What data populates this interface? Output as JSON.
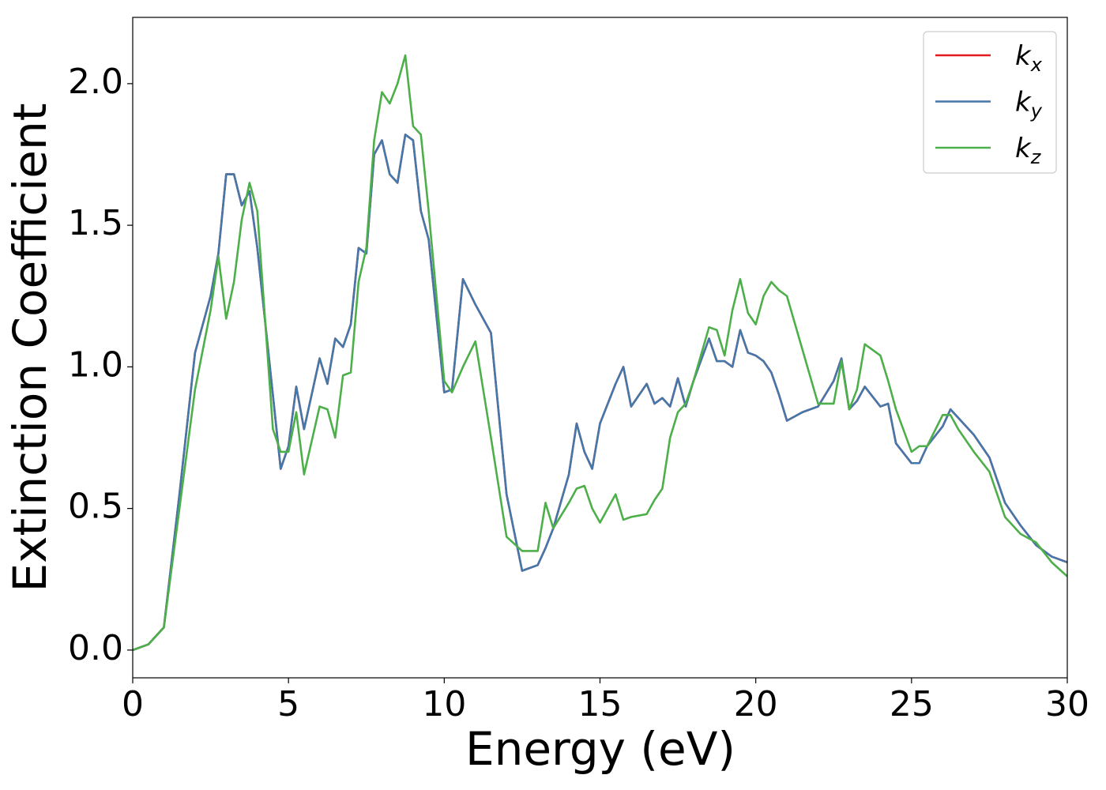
{
  "chart_data": {
    "type": "line",
    "xlabel": "Energy (eV)",
    "ylabel": "Extinction Coefficient",
    "x": [
      0,
      0.5,
      1,
      1.5,
      2,
      2.5,
      2.75,
      3,
      3.25,
      3.5,
      3.75,
      4,
      4.5,
      4.75,
      5,
      5.25,
      5.5,
      6,
      6.25,
      6.5,
      6.75,
      7,
      7.25,
      7.5,
      7.75,
      8,
      8.25,
      8.5,
      8.75,
      9,
      9.25,
      9.5,
      10,
      10.25,
      10.6,
      11,
      11.5,
      12,
      12.5,
      13,
      13.25,
      13.5,
      14,
      14.25,
      14.5,
      14.75,
      15,
      15.5,
      15.75,
      16,
      16.5,
      16.75,
      17,
      17.25,
      17.5,
      17.75,
      18,
      18.5,
      18.75,
      19,
      19.25,
      19.5,
      19.75,
      20,
      20.25,
      20.5,
      20.75,
      21,
      21.5,
      22,
      22.5,
      22.75,
      23,
      23.25,
      23.5,
      24,
      24.25,
      24.5,
      25,
      25.25,
      25.5,
      26,
      26.25,
      26.5,
      27,
      27.5,
      28,
      28.5,
      29,
      29.5,
      30
    ],
    "series": [
      {
        "name": "kx",
        "color": "#e41a1c",
        "values": [
          0,
          0.02,
          0.08,
          0.55,
          1.05,
          1.25,
          1.4,
          1.68,
          1.68,
          1.57,
          1.62,
          1.42,
          0.9,
          0.64,
          0.72,
          0.93,
          0.78,
          1.03,
          0.94,
          1.1,
          1.07,
          1.15,
          1.42,
          1.4,
          1.75,
          1.8,
          1.68,
          1.65,
          1.82,
          1.8,
          1.55,
          1.45,
          0.91,
          0.92,
          1.31,
          1.22,
          1.12,
          0.55,
          0.28,
          0.3,
          0.36,
          0.43,
          0.62,
          0.8,
          0.7,
          0.64,
          0.8,
          0.94,
          1.0,
          0.86,
          0.94,
          0.87,
          0.89,
          0.86,
          0.96,
          0.86,
          0.95,
          1.1,
          1.02,
          1.02,
          1.0,
          1.13,
          1.05,
          1.04,
          1.02,
          0.98,
          0.9,
          0.81,
          0.84,
          0.86,
          0.95,
          1.03,
          0.85,
          0.88,
          0.93,
          0.86,
          0.87,
          0.73,
          0.66,
          0.66,
          0.72,
          0.79,
          0.85,
          0.82,
          0.76,
          0.68,
          0.52,
          0.44,
          0.37,
          0.33,
          0.31
        ]
      },
      {
        "name": "ky",
        "color": "#4477aa",
        "values": [
          0,
          0.02,
          0.08,
          0.55,
          1.05,
          1.25,
          1.4,
          1.68,
          1.68,
          1.57,
          1.62,
          1.42,
          0.9,
          0.64,
          0.72,
          0.93,
          0.78,
          1.03,
          0.94,
          1.1,
          1.07,
          1.15,
          1.42,
          1.4,
          1.75,
          1.8,
          1.68,
          1.65,
          1.82,
          1.8,
          1.55,
          1.45,
          0.91,
          0.92,
          1.31,
          1.22,
          1.12,
          0.55,
          0.28,
          0.3,
          0.36,
          0.43,
          0.62,
          0.8,
          0.7,
          0.64,
          0.8,
          0.94,
          1.0,
          0.86,
          0.94,
          0.87,
          0.89,
          0.86,
          0.96,
          0.86,
          0.95,
          1.1,
          1.02,
          1.02,
          1.0,
          1.13,
          1.05,
          1.04,
          1.02,
          0.98,
          0.9,
          0.81,
          0.84,
          0.86,
          0.95,
          1.03,
          0.85,
          0.88,
          0.93,
          0.86,
          0.87,
          0.73,
          0.66,
          0.66,
          0.72,
          0.79,
          0.85,
          0.82,
          0.76,
          0.68,
          0.52,
          0.44,
          0.37,
          0.33,
          0.31
        ]
      },
      {
        "name": "kz",
        "color": "#4daf4a",
        "values": [
          0,
          0.02,
          0.08,
          0.5,
          0.92,
          1.2,
          1.39,
          1.17,
          1.3,
          1.52,
          1.65,
          1.55,
          0.78,
          0.7,
          0.7,
          0.84,
          0.62,
          0.86,
          0.85,
          0.75,
          0.97,
          0.98,
          1.3,
          1.42,
          1.8,
          1.97,
          1.93,
          2.0,
          2.1,
          1.85,
          1.82,
          1.55,
          0.95,
          0.91,
          1.0,
          1.09,
          0.75,
          0.4,
          0.35,
          0.35,
          0.52,
          0.43,
          0.52,
          0.57,
          0.58,
          0.5,
          0.45,
          0.55,
          0.46,
          0.47,
          0.48,
          0.53,
          0.57,
          0.75,
          0.84,
          0.87,
          0.95,
          1.14,
          1.13,
          1.04,
          1.2,
          1.31,
          1.19,
          1.15,
          1.25,
          1.3,
          1.27,
          1.25,
          1.06,
          0.87,
          0.87,
          1.02,
          0.85,
          0.92,
          1.08,
          1.04,
          0.95,
          0.85,
          0.7,
          0.72,
          0.72,
          0.83,
          0.83,
          0.78,
          0.7,
          0.63,
          0.47,
          0.41,
          0.38,
          0.31,
          0.26
        ]
      }
    ],
    "xlim": [
      0,
      30
    ],
    "xticks": [
      0,
      5,
      10,
      15,
      20,
      25,
      30
    ],
    "ylim": [
      -0.098,
      2.234
    ],
    "yticks": [
      {
        "value": 0,
        "label": "0.0"
      },
      0.5,
      {
        "value": 1,
        "label": "1.0"
      },
      1.5,
      {
        "value": 2,
        "label": "2.0"
      }
    ],
    "legend": "upper right",
    "grid": false
  }
}
